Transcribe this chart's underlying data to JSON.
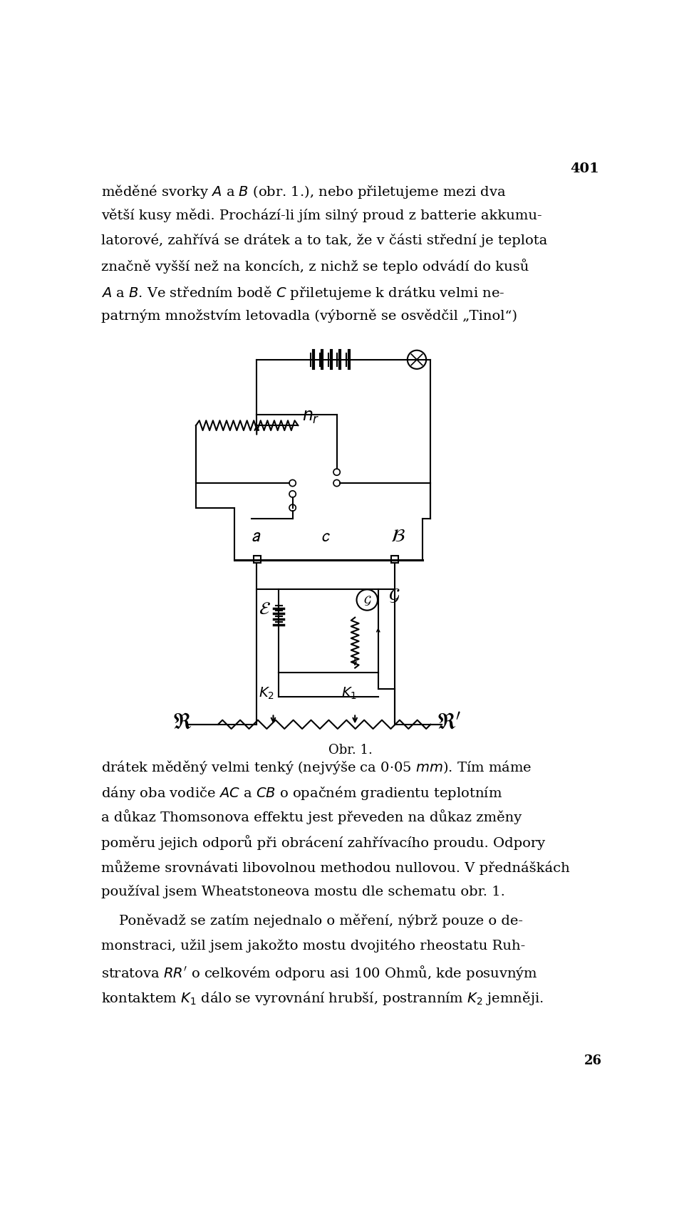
{
  "page_number": "401",
  "footer_number": "26",
  "background_color": "#ffffff",
  "text_color": "#000000",
  "caption": "Obr. 1.",
  "p1_lines": [
    "měděné svorky \\textit{A} a \\textit{B} (obr. 1.), nebo přiletujeme mezi dva",
    "větší kusy mědi. Prochází-li jím silný proud z batterie akkumu-",
    "latorové, zahřívá se drátek a to tak, že v části střední je teplota",
    "značně vyšší než na koncích, z nichž se teplo odvádí do kusů",
    "\\textit{A} a \\textit{B}. Ve středním bodě \\textit{C} přiletujeme k drátku velmi ne-",
    "patrným množstvím letovadla (výborně se osvědčil „Tinol“)"
  ],
  "p2_lines": [
    "drátek měděný velmi tenký (nejvýše ca 0·05 \\textit{mm}). Tím máme",
    "dány oba vodiče \\textit{AC} a \\textit{CB} o opačném gradientu teplotním",
    "a důkaz Thomsonova effektu jest převeden na důkaz změny",
    "poměru jejich odporů při obrácení zahřívacího proudu. Odpory",
    "můžeme srovnávati libovolnou methodou nullovou. V přednáškách",
    "používal jsem Wheatstoneova mostu dle schematu obr. 1."
  ],
  "p3_lines": [
    "    Poněvadž se zatím nejednalo o měření, nýbrž pouze o de-",
    "monstraci, užil jsem jakožto mostu dvojitého rheostatu Ruh-",
    "stratova \\textit{RR'} o celkovém odporu asi 100 Ohmů, kde posuvným",
    "kontaktem \\textit{K}\\textsubscript{1} dálo se vyrovnání hrubší, postrannim \\textit{K}\\textsubscript{2} jemnější."
  ]
}
